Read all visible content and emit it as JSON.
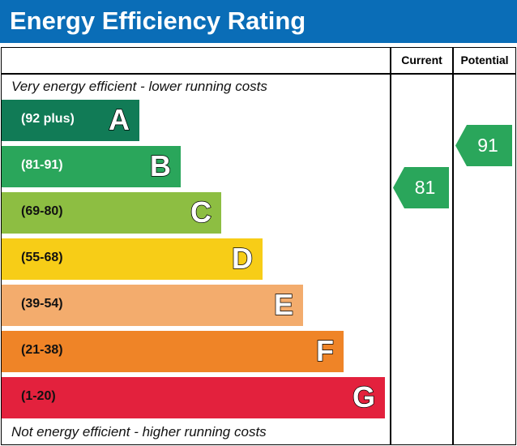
{
  "title": "Energy Efficiency Rating",
  "columns": {
    "current": "Current",
    "potential": "Potential"
  },
  "top_caption": "Very energy efficient - lower running costs",
  "bottom_caption": "Not energy efficient - higher running costs",
  "chart_data": {
    "type": "bar",
    "title": "Energy Efficiency Rating",
    "bands": [
      {
        "letter": "A",
        "range": "(92 plus)",
        "color": "#117b56",
        "text_color": "#ffffff"
      },
      {
        "letter": "B",
        "range": "(81-91)",
        "color": "#2aa65b",
        "text_color": "#ffffff"
      },
      {
        "letter": "C",
        "range": "(69-80)",
        "color": "#8dbe42",
        "text_color": "#111111"
      },
      {
        "letter": "D",
        "range": "(55-68)",
        "color": "#f7cd17",
        "text_color": "#111111"
      },
      {
        "letter": "E",
        "range": "(39-54)",
        "color": "#f3ac6d",
        "text_color": "#111111"
      },
      {
        "letter": "F",
        "range": "(21-38)",
        "color": "#ef8427",
        "text_color": "#111111"
      },
      {
        "letter": "G",
        "range": "(1-20)",
        "color": "#e3213d",
        "text_color": "#111111"
      }
    ],
    "current": {
      "value": "81",
      "band": "B",
      "color": "#2aa65b"
    },
    "potential": {
      "value": "91",
      "band": "B",
      "color": "#2aa65b"
    }
  }
}
